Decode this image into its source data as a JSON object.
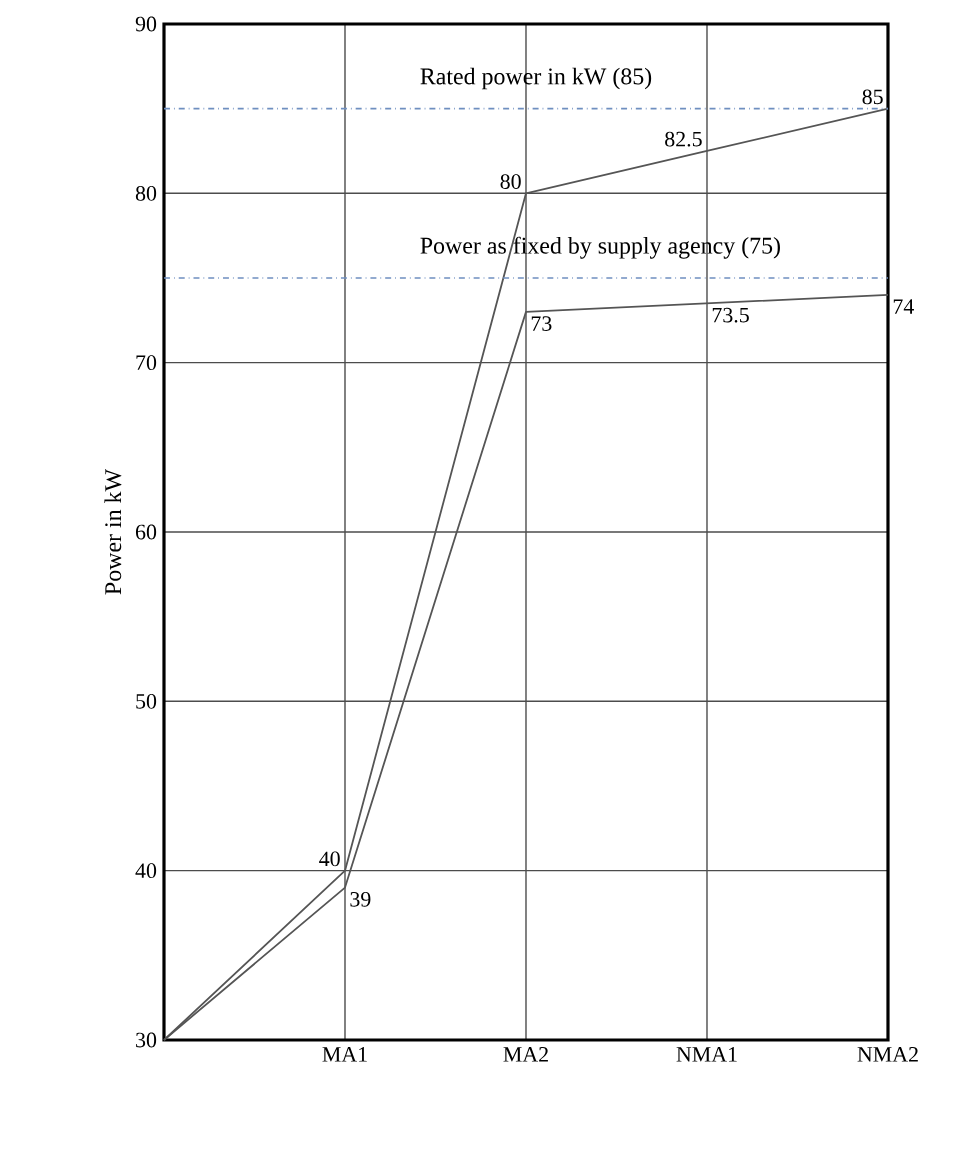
{
  "chart_data": {
    "type": "line",
    "ylabel": "Power in kW",
    "categories": [
      null,
      "MA1",
      "MA2",
      "NMA1",
      "NMA2"
    ],
    "series": [
      {
        "color": "#555555",
        "values": [
          30,
          40,
          80,
          82.5,
          85
        ],
        "value_labels": [
          null,
          "40",
          "80",
          "82.5",
          "85"
        ]
      },
      {
        "color": "#555555",
        "values": [
          30,
          39,
          73,
          73.5,
          74
        ],
        "value_labels": [
          null,
          "39",
          "73",
          "73.5",
          "74"
        ]
      }
    ],
    "ylim": [
      30,
      90
    ],
    "yticks": [
      30,
      40,
      50,
      60,
      70,
      80,
      90
    ],
    "grid": true,
    "ref_lines": [
      {
        "axis": "y",
        "value": 85,
        "label": "Rated power in kW (85)",
        "color": "#6f8fc0",
        "line_style": "dashdotted"
      },
      {
        "axis": "y",
        "value": 75,
        "label": "Power as fixed by supply agency (75)",
        "color": "#6f8fc0",
        "line_style": "dashdotted"
      }
    ]
  }
}
